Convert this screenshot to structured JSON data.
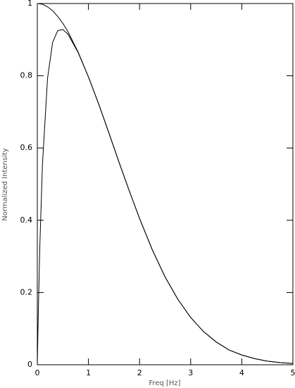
{
  "chart_data": {
    "type": "line",
    "xlabel": "Freq [Hz]",
    "ylabel": "Normalized Intensity",
    "x": [
      0,
      0.02,
      0.05,
      0.1,
      0.2,
      0.3,
      0.4,
      0.5,
      0.6,
      0.8,
      1,
      1.2,
      1.4,
      1.6,
      1.8,
      2,
      2.25,
      2.5,
      2.75,
      3,
      3.25,
      3.5,
      3.75,
      4,
      4.25,
      4.5,
      4.75,
      5
    ],
    "series": [
      {
        "color": "#000000",
        "values": [
          1,
          1,
          0.999,
          0.998,
          0.991,
          0.98,
          0.964,
          0.945,
          0.922,
          0.865,
          0.797,
          0.722,
          0.642,
          0.56,
          0.481,
          0.405,
          0.318,
          0.243,
          0.181,
          0.131,
          0.092,
          0.063,
          0.041,
          0.027,
          0.017,
          0.01,
          0.006,
          0.0035
        ]
      },
      {
        "color": "#000000",
        "values": [
          0,
          0.149,
          0.332,
          0.553,
          0.793,
          0.893,
          0.925,
          0.928,
          0.915,
          0.864,
          0.797,
          0.722,
          0.642,
          0.56,
          0.481,
          0.405,
          0.318,
          0.243,
          0.181,
          0.131,
          0.092,
          0.063,
          0.041,
          0.027,
          0.017,
          0.01,
          0.006,
          0.0035
        ]
      }
    ],
    "xlim": [
      0,
      5
    ],
    "xticks": [
      0,
      1,
      2,
      3,
      4,
      5
    ],
    "ylim": [
      0,
      1
    ],
    "yticks": [
      0,
      0.2,
      0.4,
      0.6,
      0.8,
      1
    ]
  }
}
